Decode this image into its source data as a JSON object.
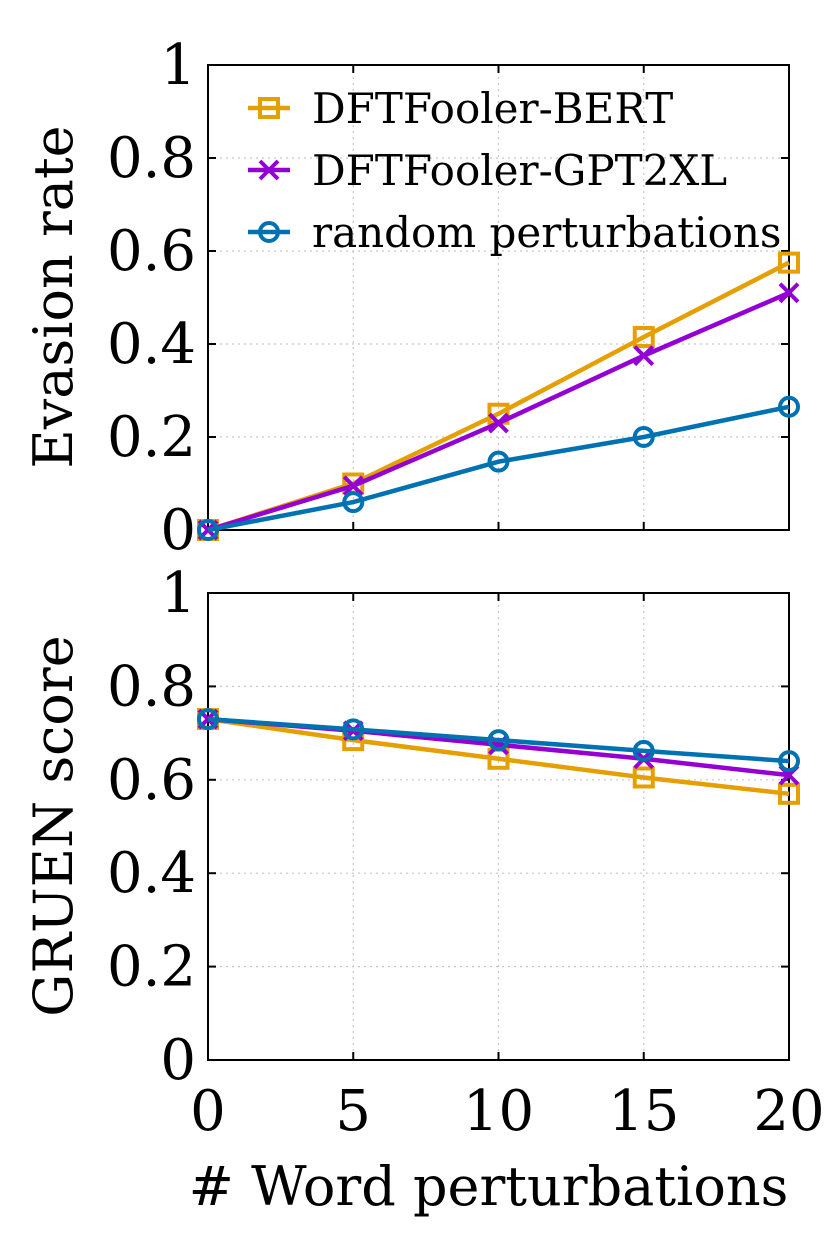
{
  "chart_data": [
    {
      "type": "line",
      "panel": "top",
      "ylabel": "Evasion rate",
      "xlabel": "",
      "ylim": [
        0,
        1
      ],
      "xlim": [
        0,
        20
      ],
      "yticks": [
        "0",
        "0.2",
        "0.4",
        "0.6",
        "0.8",
        "1"
      ],
      "ytick_values": [
        0,
        0.2,
        0.4,
        0.6,
        0.8,
        1
      ],
      "x": [
        0,
        5,
        10,
        15,
        20
      ],
      "grid": true,
      "legend_position": "top-left",
      "series": [
        {
          "name": "DFTFooler-BERT",
          "color": "#e69f00",
          "marker": "square",
          "values": [
            0.0,
            0.1,
            0.25,
            0.415,
            0.575
          ]
        },
        {
          "name": "DFTFooler-GPT2XL",
          "color": "#9400d3",
          "marker": "x",
          "values": [
            0.0,
            0.095,
            0.23,
            0.375,
            0.51
          ]
        },
        {
          "name": "random perturbations",
          "color": "#0072b2",
          "marker": "circle",
          "values": [
            0.0,
            0.06,
            0.147,
            0.2,
            0.265
          ]
        }
      ]
    },
    {
      "type": "line",
      "panel": "bottom",
      "ylabel": "GRUEN score",
      "xlabel": "# Word perturbations",
      "ylim": [
        0,
        1
      ],
      "xlim": [
        0,
        20
      ],
      "xticks": [
        "0",
        "5",
        "10",
        "15",
        "20"
      ],
      "x": [
        0,
        5,
        10,
        15,
        20
      ],
      "yticks": [
        "0",
        "0.2",
        "0.4",
        "0.6",
        "0.8",
        "1"
      ],
      "ytick_values": [
        0,
        0.2,
        0.4,
        0.6,
        0.8,
        1
      ],
      "grid": true,
      "series": [
        {
          "name": "DFTFooler-BERT",
          "color": "#e69f00",
          "marker": "square",
          "values": [
            0.73,
            0.685,
            0.645,
            0.605,
            0.57
          ]
        },
        {
          "name": "DFTFooler-GPT2XL",
          "color": "#9400d3",
          "marker": "x",
          "values": [
            0.73,
            0.705,
            0.675,
            0.645,
            0.61
          ]
        },
        {
          "name": "random perturbations",
          "color": "#0072b2",
          "marker": "circle",
          "values": [
            0.73,
            0.708,
            0.685,
            0.662,
            0.64
          ]
        }
      ]
    }
  ]
}
